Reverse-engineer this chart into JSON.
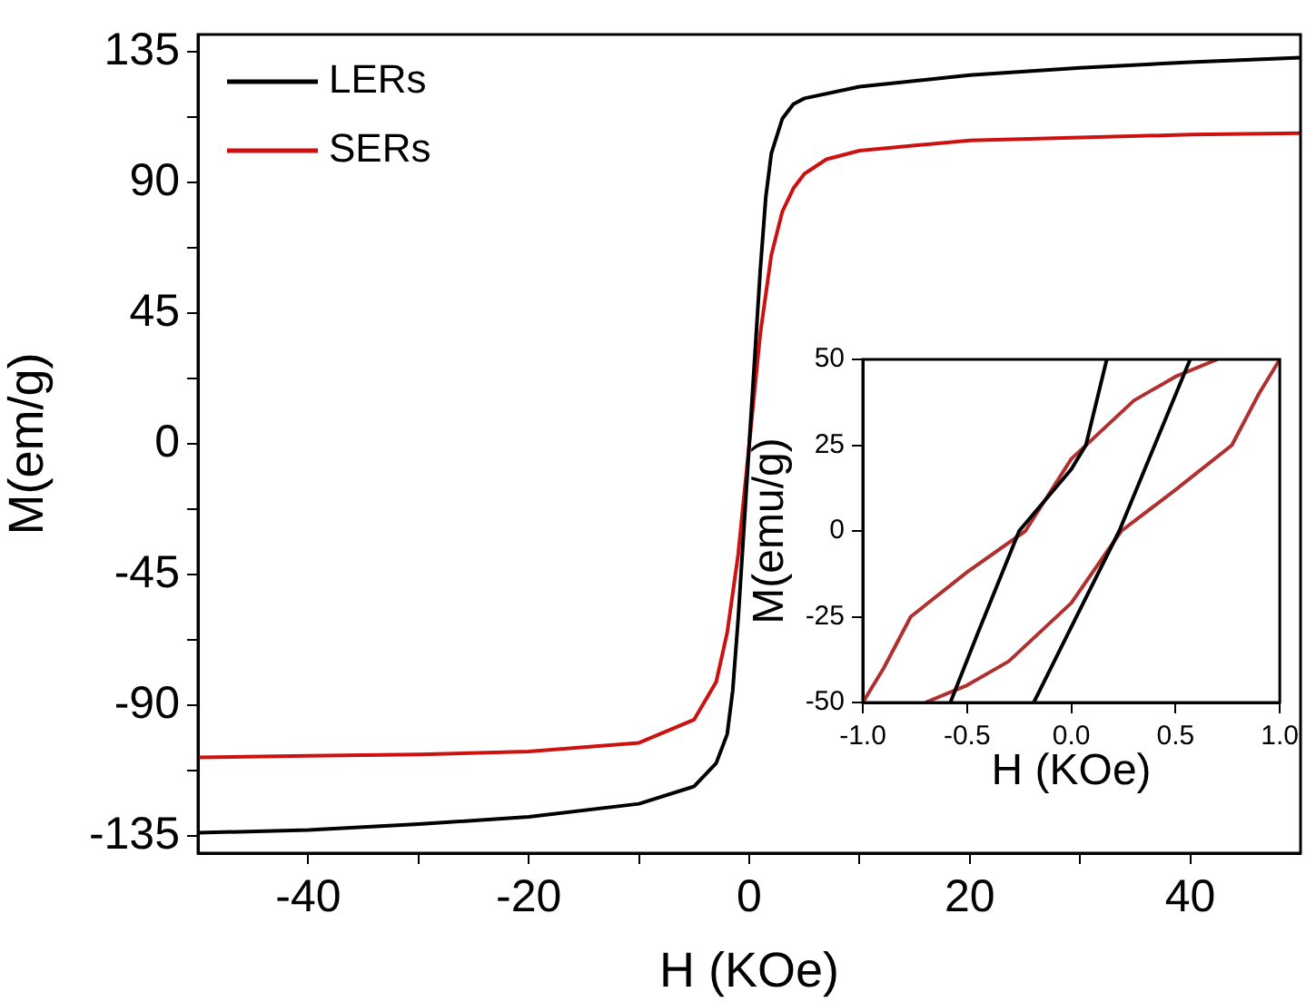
{
  "chart_data": [
    {
      "type": "line",
      "xlabel": "H (KOe)",
      "ylabel": "M(em/g)",
      "xlim": [
        -50,
        50
      ],
      "ylim": [
        -141,
        141
      ],
      "xticks": [
        -40,
        {
          "value": -30,
          "label": null
        },
        -20,
        {
          "value": -10,
          "label": null
        },
        0,
        {
          "value": 10,
          "label": null
        },
        20,
        {
          "value": 30,
          "label": null
        },
        40
      ],
      "yticks": [
        -135,
        {
          "value": -112.5,
          "label": null
        },
        -90,
        {
          "value": -67.5,
          "label": null
        },
        -45,
        {
          "value": -22.5,
          "label": null
        },
        0,
        {
          "value": 22.5,
          "label": null
        },
        45,
        {
          "value": 67.5,
          "label": null
        },
        90,
        {
          "value": 112.5,
          "label": null
        },
        135
      ],
      "grid": false,
      "legend": "top left",
      "marker": "none",
      "line_style": "solid",
      "series": [
        {
          "name": "LERs",
          "color": "#000000",
          "x": [
            -50,
            -40,
            -30,
            -20,
            -10,
            -5,
            -3,
            -2,
            -1.5,
            -1,
            -0.5,
            0,
            0.5,
            1,
            1.5,
            2,
            3,
            4,
            5,
            10,
            20,
            30,
            40,
            50
          ],
          "values": [
            -134,
            -133,
            -131,
            -128.5,
            -124,
            -118,
            -110,
            -100,
            -85,
            -60,
            -30,
            0,
            30,
            60,
            85,
            100,
            112,
            117,
            119,
            123,
            127,
            129.5,
            131.5,
            133
          ]
        },
        {
          "name": "SERs",
          "color": "#cc1111",
          "x": [
            -50,
            -40,
            -30,
            -20,
            -10,
            -5,
            -3,
            -2,
            -1,
            0,
            1,
            2,
            3,
            4,
            5,
            7,
            10,
            20,
            30,
            40,
            50
          ],
          "values": [
            -108,
            -107.5,
            -107,
            -106,
            -103,
            -95,
            -82,
            -65,
            -38,
            0,
            38,
            65,
            80,
            88,
            93,
            98,
            101,
            104.5,
            105.5,
            106.5,
            107
          ]
        }
      ]
    },
    {
      "type": "line",
      "xlabel": "H (KOe)",
      "ylabel": "M(emu/g)",
      "xlim": [
        -1,
        1
      ],
      "ylim": [
        -50,
        50
      ],
      "xticks": [
        {
          "value": -1,
          "label": "-1.0"
        },
        {
          "value": -0.5,
          "label": "-0.5"
        },
        {
          "value": 0,
          "label": "0.0"
        },
        {
          "value": 0.5,
          "label": "0.5"
        },
        {
          "value": 1,
          "label": "1.0"
        }
      ],
      "yticks": [
        -50,
        -25,
        0,
        25,
        50
      ],
      "grid": false,
      "marker": "none",
      "line_style": "solid",
      "series": [
        {
          "color": "#000000",
          "x": [
            0.17,
            0.07,
            0,
            -0.25,
            -0.45,
            -0.58
          ],
          "values": [
            50,
            25,
            18,
            0,
            -30,
            -50
          ]
        },
        {
          "color": "#000000",
          "x": [
            -0.18,
            0,
            0.23,
            0.4,
            0.57
          ],
          "values": [
            -50,
            -28,
            0,
            25,
            50
          ]
        },
        {
          "color": "#b03030",
          "x": [
            -1,
            -0.9,
            -0.77,
            -0.5,
            -0.22,
            0,
            0.3,
            0.5,
            0.7
          ],
          "values": [
            -50,
            -40,
            -25,
            -12,
            0,
            21,
            38,
            45,
            50
          ]
        },
        {
          "color": "#b03030",
          "x": [
            -0.7,
            -0.5,
            -0.3,
            0,
            0.24,
            0.5,
            0.77,
            0.9,
            1
          ],
          "values": [
            -50,
            -45,
            -38,
            -21,
            0,
            12,
            25,
            40,
            50
          ]
        }
      ]
    }
  ]
}
